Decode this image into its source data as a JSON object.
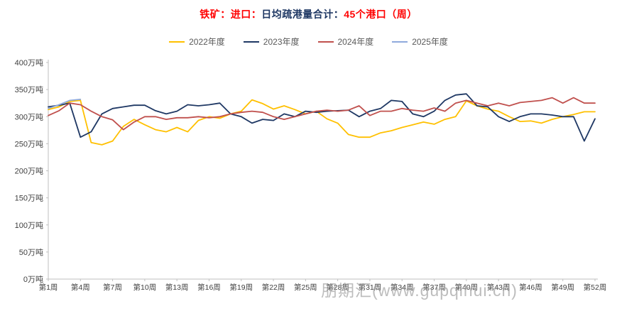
{
  "title": {
    "part1": "铁矿：进口：",
    "part2": "日均疏港量合计：",
    "part3": "45个港口（周）"
  },
  "legend": [
    {
      "label": "2022年度",
      "color": "#ffc000"
    },
    {
      "label": "2023年度",
      "color": "#1f3864"
    },
    {
      "label": "2024年度",
      "color": "#c0504d"
    },
    {
      "label": "2025年度",
      "color": "#8faadc"
    }
  ],
  "watermark": "朋期汇(www.gupqihui.cn)",
  "axis": {
    "unit_suffix": "万吨",
    "line_color": "#bfbfbf",
    "label_color": "#404040"
  },
  "chart_data": {
    "type": "line",
    "title": "铁矿：进口：日均疏港量合计：45个港口（周）",
    "ylim": [
      0,
      400
    ],
    "y_ticks": [
      0,
      50,
      100,
      150,
      200,
      250,
      300,
      350,
      400
    ],
    "x_weeks": 52,
    "x_tick_step": 3,
    "x_tick_labels": [
      "第1周",
      "第4周",
      "第7周",
      "第10周",
      "第13周",
      "第16周",
      "第19周",
      "第22周",
      "第25周",
      "第28周",
      "第31周",
      "第34周",
      "第37周",
      "第40周",
      "第43周",
      "第46周",
      "第49周",
      "第52周"
    ],
    "grid": false,
    "legend_position": "top",
    "series": [
      {
        "name": "2022年度",
        "color": "#ffc000",
        "values": [
          313,
          318,
          328,
          330,
          252,
          248,
          255,
          282,
          295,
          285,
          276,
          272,
          280,
          272,
          293,
          300,
          297,
          305,
          310,
          331,
          324,
          314,
          320,
          313,
          305,
          310,
          296,
          288,
          267,
          262,
          262,
          270,
          274,
          280,
          285,
          290,
          286,
          295,
          300,
          329,
          320,
          314,
          310,
          300,
          291,
          292,
          288,
          295,
          300,
          304,
          309,
          309
        ]
      },
      {
        "name": "2023年度",
        "color": "#1f3864",
        "values": [
          318,
          321,
          325,
          262,
          272,
          305,
          315,
          318,
          321,
          321,
          311,
          305,
          310,
          322,
          320,
          322,
          325,
          305,
          300,
          288,
          295,
          293,
          305,
          300,
          310,
          308,
          310,
          311,
          312,
          300,
          310,
          315,
          330,
          328,
          305,
          300,
          310,
          330,
          340,
          342,
          320,
          318,
          300,
          291,
          300,
          305,
          305,
          303,
          300,
          300,
          255,
          296
        ]
      },
      {
        "name": "2024年度",
        "color": "#c0504d",
        "values": [
          302,
          311,
          325,
          322,
          310,
          300,
          294,
          276,
          290,
          300,
          300,
          295,
          298,
          298,
          300,
          298,
          300,
          305,
          308,
          310,
          308,
          300,
          295,
          300,
          305,
          310,
          312,
          310,
          312,
          320,
          302,
          310,
          310,
          315,
          312,
          310,
          316,
          310,
          325,
          330,
          325,
          320,
          325,
          320,
          326,
          328,
          330,
          335,
          325,
          335,
          325,
          325
        ]
      },
      {
        "name": "2025年度",
        "color": "#8faadc",
        "values": [
          315,
          322,
          330,
          332
        ]
      }
    ]
  }
}
